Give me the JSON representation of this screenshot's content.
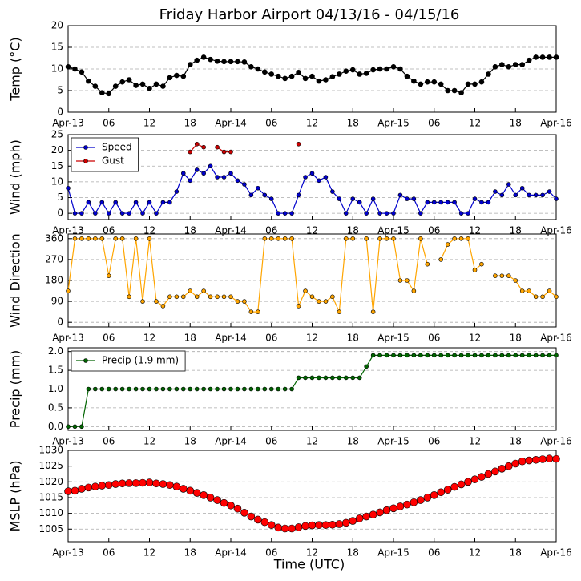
{
  "title": "Friday Harbor Airport 04/13/16 - 04/15/16",
  "xlabel": "Time (UTC)",
  "chart_data": [
    {
      "type": "line",
      "ylabel": "Temp (°C)",
      "xlim": [
        0,
        72
      ],
      "xticks": [
        {
          "value": 0,
          "label": "Apr-13"
        },
        {
          "value": 6,
          "label": "06"
        },
        {
          "value": 12,
          "label": "12"
        },
        {
          "value": 18,
          "label": "18"
        },
        {
          "value": 24,
          "label": "Apr-14"
        },
        {
          "value": 30,
          "label": "06"
        },
        {
          "value": 36,
          "label": "12"
        },
        {
          "value": 42,
          "label": "18"
        },
        {
          "value": 48,
          "label": "Apr-15"
        },
        {
          "value": 54,
          "label": "06"
        },
        {
          "value": 60,
          "label": "12"
        },
        {
          "value": 66,
          "label": "18"
        },
        {
          "value": 72,
          "label": "Apr-16"
        }
      ],
      "ylim": [
        0,
        20
      ],
      "yticks": [
        0,
        5,
        10,
        15,
        20
      ],
      "grid": true,
      "x": [
        0,
        1,
        2,
        3,
        4,
        5,
        6,
        7,
        8,
        9,
        10,
        11,
        12,
        13,
        14,
        15,
        16,
        17,
        18,
        19,
        20,
        21,
        22,
        23,
        24,
        25,
        26,
        27,
        28,
        29,
        30,
        31,
        32,
        33,
        34,
        35,
        36,
        37,
        38,
        39,
        40,
        41,
        42,
        43,
        44,
        45,
        46,
        47,
        48,
        49,
        50,
        51,
        52,
        53,
        54,
        55,
        56,
        57,
        58,
        59,
        60,
        61,
        62,
        63,
        64,
        65,
        66,
        67,
        68,
        69,
        70,
        71,
        72
      ],
      "series": [
        {
          "color": "#000000",
          "line": true,
          "marker_size": 3,
          "values": [
            10.5,
            10,
            9.3,
            7.2,
            6,
            4.5,
            4.3,
            6,
            7,
            7.5,
            6.2,
            6.5,
            5.5,
            6.5,
            6,
            8,
            8.5,
            8.3,
            11,
            12,
            12.7,
            12.2,
            11.8,
            11.7,
            11.7,
            11.7,
            11.6,
            10.5,
            10,
            9.3,
            8.8,
            8.3,
            7.8,
            8.3,
            9.2,
            7.8,
            8.3,
            7.2,
            7.5,
            8.2,
            8.8,
            9.5,
            9.8,
            8.8,
            9,
            9.8,
            10,
            10,
            10.5,
            10,
            8.3,
            7.2,
            6.5,
            7,
            7,
            6.5,
            5,
            5,
            4.5,
            6.5,
            6.5,
            7,
            8.8,
            10.5,
            11,
            10.5,
            11,
            11,
            12,
            12.7,
            12.7,
            12.7,
            12.7
          ]
        }
      ]
    },
    {
      "type": "line",
      "ylabel": "Wind (mph)",
      "legend": "upper left",
      "xlim": [
        0,
        72
      ],
      "xticks": [
        {
          "value": 0,
          "label": "Apr-13"
        },
        {
          "value": 6,
          "label": "06"
        },
        {
          "value": 12,
          "label": "12"
        },
        {
          "value": 18,
          "label": "18"
        },
        {
          "value": 24,
          "label": "Apr-14"
        },
        {
          "value": 30,
          "label": "06"
        },
        {
          "value": 36,
          "label": "12"
        },
        {
          "value": 42,
          "label": "18"
        },
        {
          "value": 48,
          "label": "Apr-15"
        },
        {
          "value": 54,
          "label": "06"
        },
        {
          "value": 60,
          "label": "12"
        },
        {
          "value": 66,
          "label": "18"
        },
        {
          "value": 72,
          "label": "Apr-16"
        }
      ],
      "ylim": [
        -2,
        25
      ],
      "yticks": [
        0,
        5,
        10,
        15,
        20,
        25
      ],
      "grid": true,
      "x": [
        0,
        1,
        2,
        3,
        4,
        5,
        6,
        7,
        8,
        9,
        10,
        11,
        12,
        13,
        14,
        15,
        16,
        17,
        18,
        19,
        20,
        21,
        22,
        23,
        24,
        25,
        26,
        27,
        28,
        29,
        30,
        31,
        32,
        33,
        34,
        35,
        36,
        37,
        38,
        39,
        40,
        41,
        42,
        43,
        44,
        45,
        46,
        47,
        48,
        49,
        50,
        51,
        52,
        53,
        54,
        55,
        56,
        57,
        58,
        59,
        60,
        61,
        62,
        63,
        64,
        65,
        66,
        67,
        68,
        69,
        70,
        71,
        72
      ],
      "series": [
        {
          "name": "Speed",
          "color": "#0000cc",
          "line": true,
          "marker_size": 2.5,
          "values": [
            8,
            0,
            0,
            3.5,
            0,
            3.5,
            0,
            3.5,
            0,
            0,
            3.5,
            0,
            3.5,
            0,
            3.5,
            3.5,
            6.9,
            12.7,
            10.4,
            13.8,
            12.7,
            15,
            11.5,
            11.5,
            12.7,
            10.4,
            9.2,
            5.8,
            8,
            5.8,
            4.6,
            0,
            0,
            0,
            5.8,
            11.5,
            12.7,
            10.4,
            11.5,
            6.9,
            4.6,
            0,
            4.6,
            3.5,
            0,
            4.6,
            0,
            0,
            0,
            5.8,
            4.6,
            4.6,
            0,
            3.5,
            3.5,
            3.5,
            3.5,
            3.5,
            0,
            0,
            4.6,
            3.5,
            3.5,
            6.9,
            5.8,
            9.2,
            5.8,
            8,
            5.8,
            5.8,
            5.8,
            6.9,
            4.6
          ]
        },
        {
          "name": "Gust",
          "color": "#cc0000",
          "line": true,
          "marker_size": 2.5,
          "values": [
            null,
            null,
            null,
            null,
            null,
            null,
            null,
            null,
            null,
            null,
            null,
            null,
            null,
            null,
            null,
            null,
            null,
            null,
            19.5,
            22,
            21,
            null,
            21,
            19.5,
            19.5,
            null,
            null,
            null,
            null,
            null,
            null,
            null,
            null,
            null,
            22,
            null,
            null,
            null,
            null,
            null,
            null,
            null,
            null,
            null,
            null,
            null,
            null,
            null,
            null,
            null,
            null,
            null,
            null,
            null,
            null,
            null,
            null,
            null,
            null,
            null,
            null,
            null,
            null,
            null,
            null,
            null,
            null,
            null,
            null,
            null,
            null,
            null,
            null
          ]
        }
      ]
    },
    {
      "type": "line",
      "ylabel": "Wind Direction",
      "xlim": [
        0,
        72
      ],
      "xticks": [
        {
          "value": 0,
          "label": "Apr-13"
        },
        {
          "value": 6,
          "label": "06"
        },
        {
          "value": 12,
          "label": "12"
        },
        {
          "value": 18,
          "label": "18"
        },
        {
          "value": 24,
          "label": "Apr-14"
        },
        {
          "value": 30,
          "label": "06"
        },
        {
          "value": 36,
          "label": "12"
        },
        {
          "value": 42,
          "label": "18"
        },
        {
          "value": 48,
          "label": "Apr-15"
        },
        {
          "value": 54,
          "label": "06"
        },
        {
          "value": 60,
          "label": "12"
        },
        {
          "value": 66,
          "label": "18"
        },
        {
          "value": 72,
          "label": "Apr-16"
        }
      ],
      "ylim": [
        -20,
        380
      ],
      "yticks": [
        0,
        90,
        180,
        270,
        360
      ],
      "grid": true,
      "x": [
        0,
        1,
        2,
        3,
        4,
        5,
        6,
        7,
        8,
        9,
        10,
        11,
        12,
        13,
        14,
        15,
        16,
        17,
        18,
        19,
        20,
        21,
        22,
        23,
        24,
        25,
        26,
        27,
        28,
        29,
        30,
        31,
        32,
        33,
        34,
        35,
        36,
        37,
        38,
        39,
        40,
        41,
        42,
        43,
        44,
        45,
        46,
        47,
        48,
        49,
        50,
        51,
        52,
        53,
        54,
        55,
        56,
        57,
        58,
        59,
        60,
        61,
        62,
        63,
        64,
        65,
        66,
        67,
        68,
        69,
        70,
        71,
        72
      ],
      "series": [
        {
          "color": "#ffa500",
          "line": true,
          "marker_size": 2.5,
          "values": [
            135,
            360,
            360,
            360,
            360,
            360,
            200,
            360,
            360,
            110,
            360,
            90,
            360,
            90,
            70,
            110,
            110,
            110,
            135,
            110,
            135,
            110,
            110,
            110,
            110,
            90,
            90,
            45,
            45,
            360,
            360,
            360,
            360,
            360,
            70,
            135,
            110,
            90,
            90,
            110,
            45,
            360,
            360,
            null,
            360,
            45,
            360,
            360,
            360,
            180,
            180,
            135,
            360,
            250,
            null,
            270,
            335,
            360,
            360,
            360,
            225,
            250,
            null,
            200,
            200,
            200,
            180,
            135,
            135,
            110,
            110,
            135,
            110
          ]
        }
      ]
    },
    {
      "type": "line",
      "ylabel": "Precip (mm)",
      "legend": "upper left",
      "xlim": [
        0,
        72
      ],
      "xticks": [
        {
          "value": 0,
          "label": "Apr-13"
        },
        {
          "value": 6,
          "label": "06"
        },
        {
          "value": 12,
          "label": "12"
        },
        {
          "value": 18,
          "label": "18"
        },
        {
          "value": 24,
          "label": "Apr-14"
        },
        {
          "value": 30,
          "label": "06"
        },
        {
          "value": 36,
          "label": "12"
        },
        {
          "value": 42,
          "label": "18"
        },
        {
          "value": 48,
          "label": "Apr-15"
        },
        {
          "value": 54,
          "label": "06"
        },
        {
          "value": 60,
          "label": "12"
        },
        {
          "value": 66,
          "label": "18"
        },
        {
          "value": 72,
          "label": "Apr-16"
        }
      ],
      "ylim": [
        -0.1,
        2.1
      ],
      "yticks": [
        {
          "value": 0,
          "label": "0.0"
        },
        {
          "value": 0.5,
          "label": "0.5"
        },
        {
          "value": 1,
          "label": "1.0"
        },
        {
          "value": 1.5,
          "label": "1.5"
        },
        {
          "value": 2,
          "label": "2.0"
        }
      ],
      "grid": true,
      "x": [
        0,
        1,
        2,
        3,
        4,
        5,
        6,
        7,
        8,
        9,
        10,
        11,
        12,
        13,
        14,
        15,
        16,
        17,
        18,
        19,
        20,
        21,
        22,
        23,
        24,
        25,
        26,
        27,
        28,
        29,
        30,
        31,
        32,
        33,
        34,
        35,
        36,
        37,
        38,
        39,
        40,
        41,
        42,
        43,
        44,
        45,
        46,
        47,
        48,
        49,
        50,
        51,
        52,
        53,
        54,
        55,
        56,
        57,
        58,
        59,
        60,
        61,
        62,
        63,
        64,
        65,
        66,
        67,
        68,
        69,
        70,
        71,
        72
      ],
      "series": [
        {
          "name": "Precip (1.9 mm)",
          "color": "#006400",
          "line": true,
          "marker_size": 2.5,
          "values": [
            0,
            0,
            0,
            1,
            1,
            1,
            1,
            1,
            1,
            1,
            1,
            1,
            1,
            1,
            1,
            1,
            1,
            1,
            1,
            1,
            1,
            1,
            1,
            1,
            1,
            1,
            1,
            1,
            1,
            1,
            1,
            1,
            1,
            1,
            1.3,
            1.3,
            1.3,
            1.3,
            1.3,
            1.3,
            1.3,
            1.3,
            1.3,
            1.3,
            1.6,
            1.9,
            1.9,
            1.9,
            1.9,
            1.9,
            1.9,
            1.9,
            1.9,
            1.9,
            1.9,
            1.9,
            1.9,
            1.9,
            1.9,
            1.9,
            1.9,
            1.9,
            1.9,
            1.9,
            1.9,
            1.9,
            1.9,
            1.9,
            1.9,
            1.9,
            1.9,
            1.9,
            1.9
          ]
        }
      ]
    },
    {
      "type": "scatter",
      "ylabel": "MSLP (hPa)",
      "xlim": [
        0,
        72
      ],
      "xticks": [
        {
          "value": 0,
          "label": "Apr-13"
        },
        {
          "value": 6,
          "label": "06"
        },
        {
          "value": 12,
          "label": "12"
        },
        {
          "value": 18,
          "label": "18"
        },
        {
          "value": 24,
          "label": "Apr-14"
        },
        {
          "value": 30,
          "label": "06"
        },
        {
          "value": 36,
          "label": "12"
        },
        {
          "value": 42,
          "label": "18"
        },
        {
          "value": 48,
          "label": "Apr-15"
        },
        {
          "value": 54,
          "label": "06"
        },
        {
          "value": 60,
          "label": "12"
        },
        {
          "value": 66,
          "label": "18"
        },
        {
          "value": 72,
          "label": "Apr-16"
        }
      ],
      "ylim": [
        1001,
        1030
      ],
      "yticks": [
        1005,
        1010,
        1015,
        1020,
        1025,
        1030
      ],
      "grid": true,
      "x": [
        0,
        1,
        2,
        3,
        4,
        5,
        6,
        7,
        8,
        9,
        10,
        11,
        12,
        13,
        14,
        15,
        16,
        17,
        18,
        19,
        20,
        21,
        22,
        23,
        24,
        25,
        26,
        27,
        28,
        29,
        30,
        31,
        32,
        33,
        34,
        35,
        36,
        37,
        38,
        39,
        40,
        41,
        42,
        43,
        44,
        45,
        46,
        47,
        48,
        49,
        50,
        51,
        52,
        53,
        54,
        55,
        56,
        57,
        58,
        59,
        60,
        61,
        62,
        63,
        64,
        65,
        66,
        67,
        68,
        69,
        70,
        71,
        72
      ],
      "series": [
        {
          "color": "#ff0000",
          "line": false,
          "marker_size": 4.5,
          "values": [
            1017,
            1017.2,
            1017.8,
            1018.2,
            1018.5,
            1018.8,
            1019,
            1019.3,
            1019.5,
            1019.6,
            1019.6,
            1019.7,
            1019.8,
            1019.5,
            1019.3,
            1019,
            1018.5,
            1017.8,
            1017.2,
            1016.5,
            1015.8,
            1015,
            1014.2,
            1013.3,
            1012.5,
            1011.5,
            1010.2,
            1009,
            1008,
            1007.2,
            1006.3,
            1005.5,
            1005.2,
            1005.2,
            1005.6,
            1006,
            1006.2,
            1006.3,
            1006.3,
            1006.4,
            1006.6,
            1007,
            1007.6,
            1008.4,
            1009,
            1009.6,
            1010.3,
            1011,
            1011.6,
            1012.2,
            1012.8,
            1013.5,
            1014.2,
            1015,
            1015.8,
            1016.7,
            1017.5,
            1018.4,
            1019.2,
            1020,
            1020.8,
            1021.6,
            1022.5,
            1023.3,
            1024.2,
            1025,
            1025.8,
            1026.5,
            1026.8,
            1027,
            1027.2,
            1027.4,
            1027.3
          ]
        }
      ]
    }
  ]
}
